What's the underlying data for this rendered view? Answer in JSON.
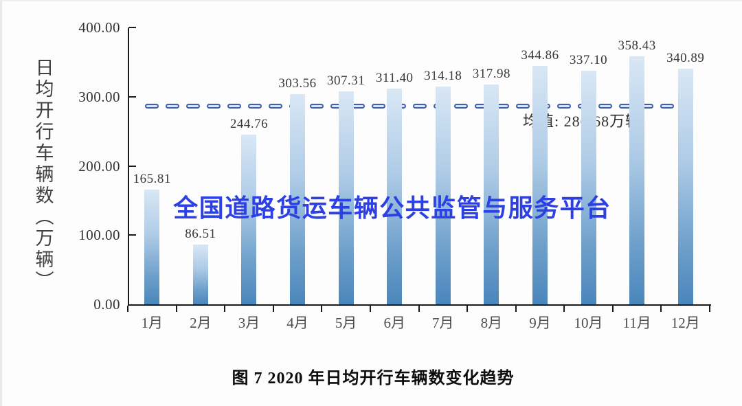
{
  "chart_data": {
    "type": "bar",
    "title": "图 7 2020 年日均开行车辆数变化趋势",
    "ylabel": "日均开行车辆数（万辆）",
    "xlabel": "",
    "categories": [
      "1月",
      "2月",
      "3月",
      "4月",
      "5月",
      "6月",
      "7月",
      "8月",
      "9月",
      "10月",
      "11月",
      "12月"
    ],
    "values": [
      165.81,
      86.51,
      244.76,
      303.56,
      307.31,
      311.4,
      314.18,
      317.98,
      344.86,
      337.1,
      358.43,
      340.89
    ],
    "value_labels": [
      "165.81",
      "86.51",
      "244.76",
      "303.56",
      "307.31",
      "311.40",
      "314.18",
      "317.98",
      "344.86",
      "337.10",
      "358.43",
      "340.89"
    ],
    "y_ticks": [
      "0.00",
      "100.00",
      "200.00",
      "300.00",
      "400.00"
    ],
    "ylim": [
      0,
      400
    ],
    "grid": false,
    "legend": "none",
    "mean": {
      "value": 286.68,
      "label": "均值: 286.68万辆"
    },
    "watermark": "全国道路货运车辆公共监管与服务平台",
    "colors": {
      "bar_top": "#d9e7f5",
      "bar_bottom": "#4a86bb",
      "dash_border": "#3d60a8",
      "dash_fill": "#dce6f3",
      "watermark_text": "#2c40e4",
      "axis": "#1a1a1a",
      "label_text": "#383838"
    }
  }
}
